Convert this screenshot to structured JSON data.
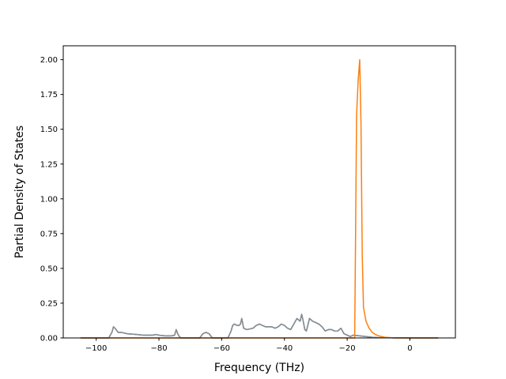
{
  "chart_data": {
    "type": "line",
    "title": "",
    "xlabel": "Frequency (THz)",
    "ylabel": "Partial Density of States",
    "xlim": [
      -110.5,
      14.5
    ],
    "ylim": [
      0.0,
      2.1
    ],
    "xticks": [
      -100,
      -80,
      -60,
      -40,
      -20,
      0
    ],
    "xtick_labels": [
      "−100",
      "−80",
      "−60",
      "−40",
      "−20",
      "0"
    ],
    "yticks": [
      0.0,
      0.25,
      0.5,
      0.75,
      1.0,
      1.25,
      1.5,
      1.75,
      2.0
    ],
    "ytick_labels": [
      "0.00",
      "0.25",
      "0.50",
      "0.75",
      "1.00",
      "1.25",
      "1.50",
      "1.75",
      "2.00"
    ],
    "grid": false,
    "legend": "none",
    "series": [
      {
        "color": "#1f77b4",
        "x": [
          -105,
          -96,
          -95,
          -94.5,
          -94,
          -93,
          -92,
          -90,
          -87,
          -85,
          -83,
          -82,
          -81,
          -80,
          -78,
          -76,
          -75,
          -74.5,
          -74,
          -73.5,
          -73,
          -70,
          -67,
          -66,
          -65,
          -64,
          -63,
          -61,
          -58,
          -57,
          -56.5,
          -56,
          -55,
          -54.5,
          -54,
          -53.6,
          -53,
          -52,
          -50,
          -49,
          -48,
          -47,
          -46,
          -45,
          -44,
          -43,
          -42,
          -41,
          -40,
          -39,
          -38,
          -37,
          -36,
          -35,
          -34.5,
          -34,
          -33.5,
          -33,
          -32,
          -31,
          -30,
          -29,
          -28,
          -27,
          -26,
          -25,
          -24,
          -23,
          -22.5,
          -22,
          -21.5,
          -21,
          -20,
          -19,
          -18,
          -16,
          -14,
          -12,
          -10,
          0,
          9
        ],
        "y": [
          0.0,
          0.0,
          0.04,
          0.08,
          0.07,
          0.04,
          0.04,
          0.03,
          0.025,
          0.02,
          0.02,
          0.02,
          0.025,
          0.02,
          0.015,
          0.015,
          0.02,
          0.06,
          0.03,
          0.01,
          0.0,
          0.0,
          0.0,
          0.03,
          0.04,
          0.03,
          0.0,
          0.0,
          0.0,
          0.05,
          0.09,
          0.1,
          0.09,
          0.09,
          0.1,
          0.14,
          0.07,
          0.06,
          0.07,
          0.09,
          0.1,
          0.09,
          0.08,
          0.08,
          0.08,
          0.07,
          0.08,
          0.1,
          0.09,
          0.07,
          0.06,
          0.1,
          0.14,
          0.12,
          0.17,
          0.12,
          0.06,
          0.05,
          0.14,
          0.12,
          0.11,
          0.1,
          0.08,
          0.05,
          0.06,
          0.06,
          0.05,
          0.05,
          0.06,
          0.07,
          0.05,
          0.03,
          0.02,
          0.01,
          0.02,
          0.015,
          0.01,
          0.005,
          0.002,
          0.0,
          0.0
        ]
      },
      {
        "color": "#8c8c8c",
        "x": [
          -105,
          -96,
          -95,
          -94.5,
          -94,
          -93,
          -92,
          -90,
          -87,
          -85,
          -83,
          -82,
          -81,
          -80,
          -78,
          -76,
          -75,
          -74.5,
          -74,
          -73.5,
          -73,
          -70,
          -67,
          -66,
          -65,
          -64,
          -63,
          -61,
          -58,
          -57,
          -56.5,
          -56,
          -55,
          -54.5,
          -54,
          -53.6,
          -53,
          -52,
          -50,
          -49,
          -48,
          -47,
          -46,
          -45,
          -44,
          -43,
          -42,
          -41,
          -40,
          -39,
          -38,
          -37,
          -36,
          -35,
          -34.5,
          -34,
          -33.5,
          -33,
          -32,
          -31,
          -30,
          -29,
          -28,
          -27,
          -26,
          -25,
          -24,
          -23,
          -22.5,
          -22,
          -21.5,
          -21,
          -20,
          -19,
          -18,
          -16,
          -14,
          -12,
          -10,
          0,
          9
        ],
        "y": [
          0.0,
          0.0,
          0.04,
          0.08,
          0.07,
          0.04,
          0.04,
          0.03,
          0.025,
          0.02,
          0.02,
          0.02,
          0.025,
          0.02,
          0.015,
          0.015,
          0.02,
          0.06,
          0.03,
          0.01,
          0.0,
          0.0,
          0.0,
          0.03,
          0.04,
          0.03,
          0.0,
          0.0,
          0.0,
          0.05,
          0.09,
          0.1,
          0.09,
          0.09,
          0.1,
          0.14,
          0.07,
          0.06,
          0.07,
          0.09,
          0.1,
          0.09,
          0.08,
          0.08,
          0.08,
          0.07,
          0.08,
          0.1,
          0.09,
          0.07,
          0.06,
          0.1,
          0.14,
          0.12,
          0.17,
          0.12,
          0.06,
          0.05,
          0.14,
          0.12,
          0.11,
          0.1,
          0.08,
          0.05,
          0.06,
          0.06,
          0.05,
          0.05,
          0.06,
          0.07,
          0.05,
          0.03,
          0.02,
          0.01,
          0.02,
          0.015,
          0.01,
          0.005,
          0.002,
          0.0,
          0.0
        ]
      },
      {
        "color": "#ff7f0e",
        "x": [
          -105,
          -20,
          -17.6,
          -17,
          -16.5,
          -16,
          -15.6,
          -15.2,
          -14.8,
          -14,
          -13,
          -12,
          -11,
          -10,
          -8,
          -5,
          0,
          9
        ],
        "y": [
          0.0,
          0.0,
          0.0,
          1.6,
          1.85,
          2.0,
          1.55,
          0.6,
          0.22,
          0.12,
          0.07,
          0.04,
          0.025,
          0.015,
          0.005,
          0.0,
          0.0,
          0.0
        ]
      }
    ]
  }
}
